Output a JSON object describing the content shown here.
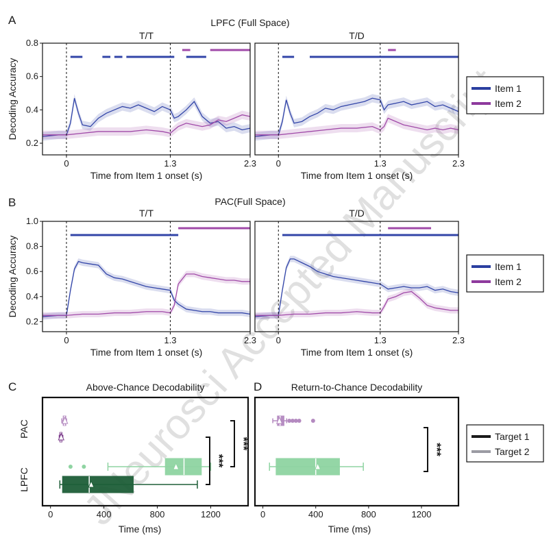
{
  "watermark": "JNeurosci Accepted Manuscript",
  "chart_data": [
    {
      "id": "A",
      "type": "line",
      "letter": "A",
      "title": "LPFC (Full Space)",
      "ylabel": "Decoding Accuracy",
      "xlabel": "Time from Item 1 onset (s)",
      "xlim": [
        -0.3,
        2.3
      ],
      "ylim": [
        0.13,
        0.8
      ],
      "yticks": [
        "0.2",
        "0.4",
        "0.6",
        "0.8"
      ],
      "ytick_values": [
        0.2,
        0.4,
        0.6,
        0.8
      ],
      "xticks": [
        "0",
        "1.3",
        "2.3"
      ],
      "xtick_values": [
        0,
        1.3,
        2.3
      ],
      "vlines": [
        0,
        1.3
      ],
      "legend": [
        {
          "name": "Item 1",
          "color": "#2b3fa0"
        },
        {
          "name": "Item 2",
          "color": "#8e3a9d"
        }
      ],
      "subplots": [
        {
          "name": "T/T",
          "series": [
            {
              "name": "Item 1",
              "color": "#3245a8",
              "x": [
                -0.3,
                -0.1,
                0.0,
                0.05,
                0.1,
                0.15,
                0.2,
                0.3,
                0.4,
                0.5,
                0.6,
                0.7,
                0.8,
                0.9,
                1.0,
                1.1,
                1.2,
                1.3,
                1.35,
                1.4,
                1.5,
                1.6,
                1.7,
                1.8,
                1.9,
                2.0,
                2.1,
                2.2,
                2.3
              ],
              "values": [
                0.24,
                0.25,
                0.25,
                0.32,
                0.47,
                0.38,
                0.31,
                0.3,
                0.35,
                0.38,
                0.4,
                0.42,
                0.41,
                0.43,
                0.41,
                0.39,
                0.42,
                0.4,
                0.35,
                0.36,
                0.4,
                0.45,
                0.36,
                0.32,
                0.33,
                0.29,
                0.3,
                0.28,
                0.29
              ]
            },
            {
              "name": "Item 2",
              "color": "#a04aa8",
              "x": [
                -0.3,
                -0.1,
                0.0,
                0.2,
                0.4,
                0.6,
                0.8,
                1.0,
                1.2,
                1.3,
                1.4,
                1.5,
                1.6,
                1.7,
                1.8,
                1.9,
                2.0,
                2.1,
                2.2,
                2.3
              ],
              "values": [
                0.25,
                0.25,
                0.25,
                0.26,
                0.27,
                0.27,
                0.27,
                0.28,
                0.27,
                0.26,
                0.3,
                0.32,
                0.31,
                0.3,
                0.31,
                0.34,
                0.33,
                0.35,
                0.37,
                0.36
              ]
            }
          ],
          "sig_bars": [
            {
              "series": "Item 1",
              "segments": [
                [
                  0.05,
                  0.2
                ],
                [
                  0.45,
                  0.55
                ],
                [
                  0.6,
                  0.7
                ],
                [
                  0.75,
                  1.35
                ],
                [
                  1.5,
                  1.75
                ]
              ]
            },
            {
              "series": "Item 2",
              "segments": [
                [
                  1.45,
                  1.55
                ],
                [
                  1.8,
                  2.3
                ]
              ]
            }
          ]
        },
        {
          "name": "T/D",
          "series": [
            {
              "name": "Item 1",
              "color": "#3245a8",
              "x": [
                -0.3,
                -0.1,
                0.0,
                0.05,
                0.1,
                0.15,
                0.2,
                0.3,
                0.4,
                0.5,
                0.6,
                0.7,
                0.8,
                0.9,
                1.0,
                1.1,
                1.2,
                1.3,
                1.35,
                1.4,
                1.5,
                1.6,
                1.7,
                1.8,
                1.9,
                2.0,
                2.1,
                2.2,
                2.3
              ],
              "values": [
                0.24,
                0.25,
                0.25,
                0.33,
                0.46,
                0.38,
                0.32,
                0.33,
                0.36,
                0.38,
                0.41,
                0.4,
                0.42,
                0.43,
                0.44,
                0.45,
                0.47,
                0.46,
                0.4,
                0.43,
                0.44,
                0.45,
                0.43,
                0.44,
                0.45,
                0.42,
                0.43,
                0.41,
                0.39
              ]
            },
            {
              "name": "Item 2",
              "color": "#a04aa8",
              "x": [
                -0.3,
                -0.1,
                0.0,
                0.2,
                0.4,
                0.6,
                0.8,
                1.0,
                1.2,
                1.3,
                1.35,
                1.4,
                1.5,
                1.6,
                1.7,
                1.8,
                1.9,
                2.0,
                2.1,
                2.2,
                2.3
              ],
              "values": [
                0.25,
                0.25,
                0.25,
                0.26,
                0.27,
                0.28,
                0.29,
                0.29,
                0.3,
                0.28,
                0.3,
                0.35,
                0.33,
                0.31,
                0.3,
                0.29,
                0.28,
                0.29,
                0.28,
                0.29,
                0.28
              ]
            }
          ],
          "sig_bars": [
            {
              "series": "Item 1",
              "segments": [
                [
                  0.05,
                  0.2
                ],
                [
                  0.4,
                  2.3
                ]
              ]
            },
            {
              "series": "Item 2",
              "segments": [
                [
                  1.4,
                  1.5
                ]
              ]
            }
          ]
        }
      ]
    },
    {
      "id": "B",
      "type": "line",
      "letter": "B",
      "title": "PAC(Full Space)",
      "ylabel": "Decoding Accuracy",
      "xlabel": "Time from Item 1 onset (s)",
      "xlim": [
        -0.3,
        2.3
      ],
      "ylim": [
        0.12,
        1.0
      ],
      "yticks": [
        "0.2",
        "0.4",
        "0.6",
        "0.8",
        "1.0"
      ],
      "ytick_values": [
        0.2,
        0.4,
        0.6,
        0.8,
        1.0
      ],
      "xticks": [
        "0",
        "1.3",
        "2.3"
      ],
      "xtick_values": [
        0,
        1.3,
        2.3
      ],
      "vlines": [
        0,
        1.3
      ],
      "legend": [
        {
          "name": "Item 1",
          "color": "#2b3fa0"
        },
        {
          "name": "Item 2",
          "color": "#8e3a9d"
        }
      ],
      "subplots": [
        {
          "name": "T/T",
          "series": [
            {
              "name": "Item 1",
              "color": "#3245a8",
              "x": [
                -0.3,
                -0.1,
                0.0,
                0.05,
                0.1,
                0.15,
                0.2,
                0.3,
                0.4,
                0.5,
                0.6,
                0.7,
                0.8,
                0.9,
                1.0,
                1.1,
                1.2,
                1.3,
                1.35,
                1.4,
                1.5,
                1.6,
                1.7,
                1.8,
                1.9,
                2.0,
                2.1,
                2.2,
                2.3
              ],
              "values": [
                0.24,
                0.25,
                0.25,
                0.45,
                0.62,
                0.68,
                0.67,
                0.66,
                0.65,
                0.58,
                0.55,
                0.54,
                0.52,
                0.5,
                0.48,
                0.47,
                0.46,
                0.45,
                0.37,
                0.34,
                0.3,
                0.29,
                0.28,
                0.28,
                0.27,
                0.27,
                0.27,
                0.27,
                0.26
              ]
            },
            {
              "name": "Item 2",
              "color": "#a04aa8",
              "x": [
                -0.3,
                -0.1,
                0.0,
                0.2,
                0.4,
                0.6,
                0.8,
                1.0,
                1.2,
                1.3,
                1.35,
                1.4,
                1.5,
                1.6,
                1.7,
                1.8,
                1.9,
                2.0,
                2.1,
                2.2,
                2.3
              ],
              "values": [
                0.25,
                0.25,
                0.25,
                0.26,
                0.26,
                0.27,
                0.27,
                0.28,
                0.28,
                0.27,
                0.33,
                0.5,
                0.58,
                0.58,
                0.56,
                0.55,
                0.54,
                0.53,
                0.53,
                0.52,
                0.52
              ]
            }
          ],
          "sig_bars": [
            {
              "series": "Item 1",
              "segments": [
                [
                  0.05,
                  1.4
                ]
              ]
            },
            {
              "series": "Item 2",
              "segments": [
                [
                  1.4,
                  2.3
                ]
              ]
            }
          ]
        },
        {
          "name": "T/D",
          "series": [
            {
              "name": "Item 1",
              "color": "#3245a8",
              "x": [
                -0.3,
                -0.1,
                0.0,
                0.05,
                0.1,
                0.15,
                0.2,
                0.3,
                0.4,
                0.5,
                0.6,
                0.7,
                0.8,
                0.9,
                1.0,
                1.1,
                1.2,
                1.3,
                1.35,
                1.4,
                1.5,
                1.6,
                1.7,
                1.8,
                1.9,
                2.0,
                2.1,
                2.2,
                2.3
              ],
              "values": [
                0.24,
                0.25,
                0.25,
                0.45,
                0.63,
                0.7,
                0.7,
                0.67,
                0.64,
                0.6,
                0.58,
                0.56,
                0.55,
                0.54,
                0.53,
                0.52,
                0.51,
                0.5,
                0.48,
                0.46,
                0.47,
                0.48,
                0.47,
                0.47,
                0.48,
                0.45,
                0.46,
                0.44,
                0.43
              ]
            },
            {
              "name": "Item 2",
              "color": "#a04aa8",
              "x": [
                -0.3,
                -0.1,
                0.0,
                0.2,
                0.4,
                0.6,
                0.8,
                1.0,
                1.2,
                1.3,
                1.35,
                1.4,
                1.5,
                1.6,
                1.7,
                1.8,
                1.9,
                2.0,
                2.1,
                2.2,
                2.3
              ],
              "values": [
                0.25,
                0.25,
                0.25,
                0.26,
                0.26,
                0.27,
                0.27,
                0.28,
                0.27,
                0.27,
                0.32,
                0.38,
                0.4,
                0.43,
                0.44,
                0.39,
                0.33,
                0.31,
                0.3,
                0.29,
                0.29
              ]
            }
          ],
          "sig_bars": [
            {
              "series": "Item 1",
              "segments": [
                [
                  0.05,
                  2.3
                ]
              ]
            },
            {
              "series": "Item 2",
              "segments": [
                [
                  1.4,
                  1.95
                ]
              ]
            }
          ]
        }
      ]
    },
    {
      "id": "C",
      "type": "box",
      "letter": "C",
      "title": "Above-Chance Decodability",
      "xlabel": "Time (ms)",
      "xlim": [
        -60,
        1480
      ],
      "xticks": [
        "0",
        "400",
        "800",
        "1200"
      ],
      "xtick_values": [
        0,
        400,
        800,
        1200
      ],
      "categories": [
        "PAC",
        "LPFC"
      ],
      "boxes": [
        {
          "group": "PAC",
          "target": "Target 2",
          "color": "#b48ac0",
          "q1": 95,
          "median": 105,
          "q3": 115,
          "whisker_low": 85,
          "whisker_high": 120,
          "mean": 108,
          "outliers": []
        },
        {
          "group": "PAC",
          "target": "Target 1",
          "color": "#7d3e8c",
          "q1": 70,
          "median": 78,
          "q3": 86,
          "whisker_low": 66,
          "whisker_high": 92,
          "mean": 80,
          "outliers": []
        },
        {
          "group": "LPFC",
          "target": "Target 2",
          "color": "#8fd4a2",
          "q1": 860,
          "median": 1000,
          "q3": 1130,
          "whisker_low": 430,
          "whisker_high": 1200,
          "mean": 940,
          "outliers": [
            150,
            250
          ]
        },
        {
          "group": "LPFC",
          "target": "Target 1",
          "color": "#1e5e38",
          "q1": 90,
          "median": 290,
          "q3": 620,
          "whisker_low": 70,
          "whisker_high": 1100,
          "mean": 305,
          "outliers": []
        }
      ],
      "significance": [
        {
          "label": "***",
          "between": [
            "LPFC Target 2",
            "LPFC Target 1"
          ]
        },
        {
          "label": "***",
          "between": [
            "PAC Target 2",
            "LPFC Target 2"
          ]
        }
      ],
      "legend": [
        {
          "name": "Target 1",
          "color": "#1a1a1a"
        },
        {
          "name": "Target 2",
          "color": "#9b9ba3"
        }
      ]
    },
    {
      "id": "D",
      "type": "box",
      "letter": "D",
      "title": "Return-to-Chance Decodability",
      "xlabel": "Time (ms)",
      "xlim": [
        -60,
        1480
      ],
      "xticks": [
        "0",
        "400",
        "800",
        "1200"
      ],
      "xtick_values": [
        0,
        400,
        800,
        1200
      ],
      "categories": [
        "PAC",
        "LPFC"
      ],
      "boxes": [
        {
          "group": "PAC",
          "target": "Target 2",
          "color": "#b48ac0",
          "q1": 110,
          "median": 130,
          "q3": 160,
          "whisker_low": 75,
          "whisker_high": 180,
          "mean": 125,
          "outliers": [
            200,
            225,
            250,
            275,
            380
          ]
        },
        {
          "group": "LPFC",
          "target": "Target 2",
          "color": "#8fd4a2",
          "q1": 100,
          "median": 400,
          "q3": 580,
          "whisker_low": 50,
          "whisker_high": 760,
          "mean": 415,
          "outliers": []
        }
      ],
      "significance": [
        {
          "label": "***",
          "between": [
            "PAC Target 2",
            "LPFC Target 2"
          ]
        }
      ]
    }
  ]
}
